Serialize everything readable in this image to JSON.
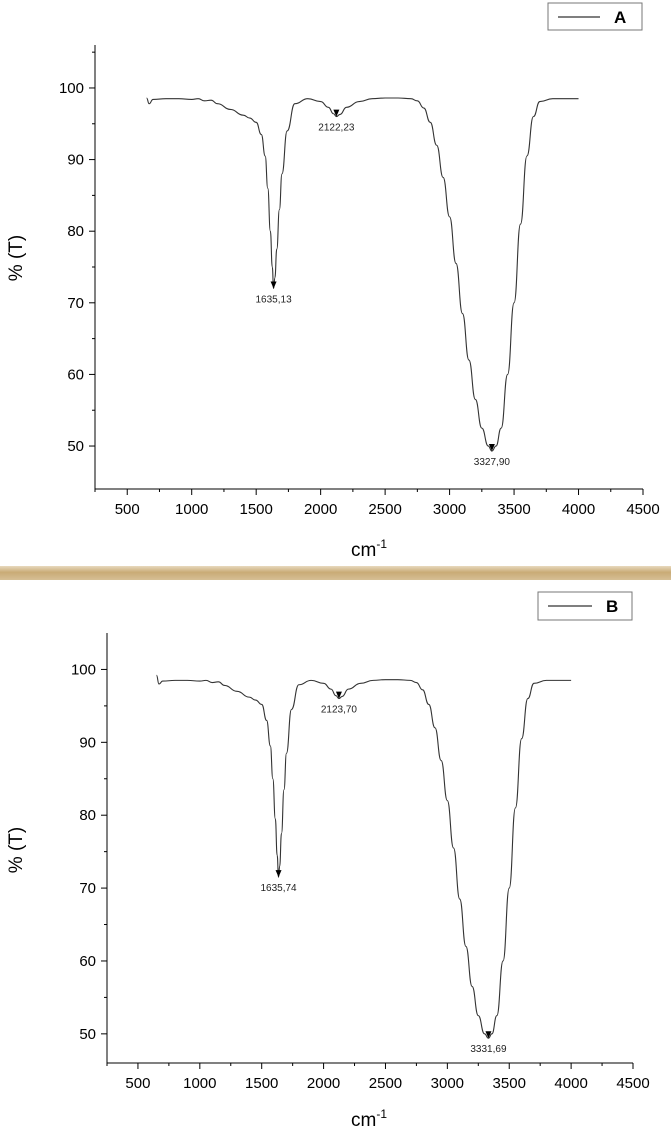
{
  "chart_data": [
    {
      "type": "line",
      "title": "",
      "xlabel": "cm",
      "xlabel_sup": "-1",
      "ylabel": "% (T)",
      "xlim": [
        250,
        4500
      ],
      "ylim": [
        44,
        106
      ],
      "x_ticks": [
        500,
        1000,
        1500,
        2000,
        2500,
        3000,
        3500,
        4000,
        4500
      ],
      "x_tick_labels": [
        "500",
        "1000",
        "1500",
        "2000",
        "2500",
        "3000",
        "3500",
        "4000",
        "4500"
      ],
      "y_ticks": [
        50,
        60,
        70,
        80,
        90,
        100
      ],
      "y_tick_labels": [
        "50",
        "60",
        "70",
        "80",
        "90",
        "100"
      ],
      "grid": false,
      "legend": {
        "position": "top-right",
        "entries": [
          "A"
        ]
      },
      "series": [
        {
          "name": "A",
          "x": [
            650,
            670,
            700,
            800,
            900,
            1000,
            1050,
            1100,
            1150,
            1200,
            1300,
            1400,
            1450,
            1500,
            1540,
            1570,
            1590,
            1610,
            1625,
            1635,
            1645,
            1660,
            1680,
            1700,
            1740,
            1800,
            1900,
            2000,
            2060,
            2100,
            2122,
            2150,
            2200,
            2300,
            2400,
            2500,
            2600,
            2700,
            2750,
            2800,
            2850,
            2900,
            2950,
            3000,
            3050,
            3100,
            3150,
            3200,
            3250,
            3300,
            3328,
            3360,
            3400,
            3450,
            3500,
            3550,
            3600,
            3650,
            3700,
            3800,
            3900,
            4000
          ],
          "y": [
            98.6,
            97.8,
            98.4,
            98.5,
            98.5,
            98.4,
            98.5,
            98.2,
            98.3,
            97.8,
            97.0,
            96.2,
            95.8,
            95.2,
            93.5,
            90.5,
            86.0,
            80.0,
            75.0,
            72.0,
            73.5,
            77.5,
            83.0,
            88.0,
            94.0,
            97.8,
            98.5,
            98.1,
            97.3,
            96.4,
            96.0,
            96.3,
            97.3,
            98.1,
            98.5,
            98.6,
            98.6,
            98.5,
            98.2,
            97.2,
            95.2,
            92.0,
            87.5,
            82.0,
            75.5,
            68.5,
            62.0,
            56.5,
            52.5,
            50.0,
            49.3,
            50.0,
            52.5,
            60.0,
            70.0,
            81.0,
            90.5,
            96.0,
            98.1,
            98.5,
            98.5,
            98.5
          ]
        }
      ],
      "annotations": [
        {
          "x": 1635,
          "y": 72.0,
          "text": "1635,13"
        },
        {
          "x": 2122,
          "y": 96.0,
          "text": "2122,23"
        },
        {
          "x": 3328,
          "y": 49.3,
          "text": "3327,90"
        }
      ]
    },
    {
      "type": "line",
      "title": "",
      "xlabel": "cm",
      "xlabel_sup": "-1",
      "ylabel": "% (T)",
      "xlim": [
        250,
        4500
      ],
      "ylim": [
        46,
        105
      ],
      "x_ticks": [
        500,
        1000,
        1500,
        2000,
        2500,
        3000,
        3500,
        4000,
        4500
      ],
      "x_tick_labels": [
        "500",
        "1000",
        "1500",
        "2000",
        "2500",
        "3000",
        "3500",
        "4000",
        "4500"
      ],
      "y_ticks": [
        50,
        60,
        70,
        80,
        90,
        100
      ],
      "y_tick_labels": [
        "50",
        "60",
        "70",
        "80",
        "90",
        "100"
      ],
      "grid": false,
      "legend": {
        "position": "top-right",
        "entries": [
          "B"
        ]
      },
      "series": [
        {
          "name": "B",
          "x": [
            650,
            670,
            700,
            800,
            900,
            1000,
            1050,
            1100,
            1150,
            1200,
            1300,
            1400,
            1450,
            1500,
            1540,
            1570,
            1590,
            1610,
            1625,
            1636,
            1645,
            1660,
            1680,
            1700,
            1740,
            1800,
            1900,
            2000,
            2060,
            2100,
            2124,
            2150,
            2200,
            2300,
            2400,
            2500,
            2600,
            2700,
            2750,
            2800,
            2850,
            2900,
            2950,
            3000,
            3050,
            3100,
            3150,
            3200,
            3250,
            3300,
            3332,
            3360,
            3400,
            3450,
            3500,
            3550,
            3600,
            3650,
            3700,
            3800,
            3900,
            4000
          ],
          "y": [
            99.2,
            98.0,
            98.4,
            98.5,
            98.5,
            98.4,
            98.5,
            98.2,
            98.3,
            97.8,
            97.0,
            96.2,
            95.8,
            95.2,
            93.0,
            89.5,
            85.0,
            79.5,
            74.5,
            71.5,
            73.0,
            77.5,
            83.5,
            88.5,
            94.5,
            97.9,
            98.5,
            98.1,
            97.3,
            96.4,
            96.0,
            96.3,
            97.3,
            98.1,
            98.5,
            98.6,
            98.6,
            98.5,
            98.2,
            97.2,
            95.2,
            92.0,
            87.5,
            82.0,
            75.5,
            68.5,
            62.0,
            56.5,
            52.5,
            50.0,
            49.4,
            50.0,
            52.5,
            60.0,
            70.0,
            81.0,
            90.5,
            96.0,
            98.1,
            98.5,
            98.5,
            98.5
          ]
        }
      ],
      "annotations": [
        {
          "x": 1636,
          "y": 71.5,
          "text": "1635,74"
        },
        {
          "x": 2124,
          "y": 96.0,
          "text": "2123,70"
        },
        {
          "x": 3332,
          "y": 49.4,
          "text": "3331,69"
        }
      ]
    }
  ]
}
